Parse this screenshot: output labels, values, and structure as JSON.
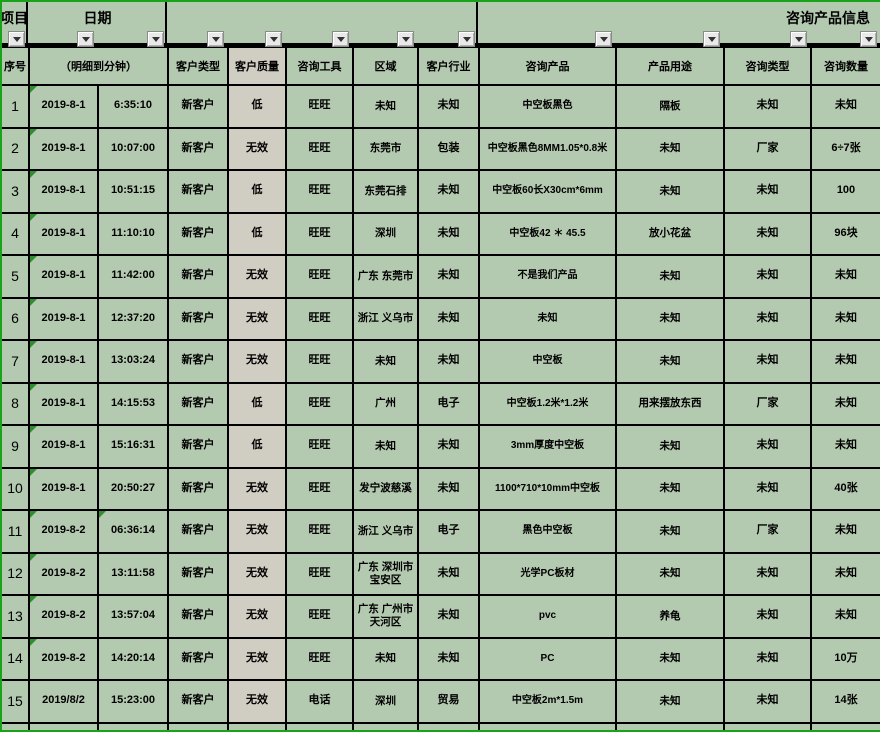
{
  "sheet": {
    "band": {
      "project": "项目",
      "date": "日期",
      "product_info": "咨询产品信息"
    },
    "header": [
      {
        "label": "序号",
        "span": 1
      },
      {
        "label": "（明细到分钟）",
        "span": 2
      },
      {
        "label": "客户类型",
        "span": 1
      },
      {
        "label": "客户质量",
        "span": 1,
        "gray": true
      },
      {
        "label": "咨询工具",
        "span": 1
      },
      {
        "label": "区域",
        "span": 1
      },
      {
        "label": "客户行业",
        "span": 1
      },
      {
        "label": "咨询产品",
        "span": 1
      },
      {
        "label": "产品用途",
        "span": 1
      },
      {
        "label": "咨询类型",
        "span": 1
      },
      {
        "label": "咨询数量",
        "span": 1
      }
    ],
    "rows": [
      {
        "index": "1",
        "date": "2019-8-1",
        "time": "6:35:10",
        "customer_type": "新客户",
        "quality": "低",
        "tool": "旺旺",
        "region": "未知",
        "industry": "未知",
        "product": "中空板黑色",
        "usage": "隔板",
        "type": "未知",
        "quantity": "未知",
        "date_marker": true,
        "time_marker": false
      },
      {
        "index": "2",
        "date": "2019-8-1",
        "time": "10:07:00",
        "customer_type": "新客户",
        "quality": "无效",
        "tool": "旺旺",
        "region": "东莞市",
        "industry": "包装",
        "product": "中空板黑色8MM1.05*0.8米",
        "usage": "未知",
        "type": "厂家",
        "quantity": "6÷7张",
        "date_marker": true,
        "time_marker": false
      },
      {
        "index": "3",
        "date": "2019-8-1",
        "time": "10:51:15",
        "customer_type": "新客户",
        "quality": "低",
        "tool": "旺旺",
        "region": "东莞石排",
        "industry": "未知",
        "product": "中空板60长X30cm*6mm",
        "usage": "未知",
        "type": "未知",
        "quantity": "100",
        "date_marker": true,
        "time_marker": false
      },
      {
        "index": "4",
        "date": "2019-8-1",
        "time": "11:10:10",
        "customer_type": "新客户",
        "quality": "低",
        "tool": "旺旺",
        "region": "深圳",
        "industry": "未知",
        "product": "中空板42 ＊ 45.5",
        "usage": "放小花盆",
        "type": "未知",
        "quantity": "96块",
        "date_marker": true,
        "time_marker": false
      },
      {
        "index": "5",
        "date": "2019-8-1",
        "time": "11:42:00",
        "customer_type": "新客户",
        "quality": "无效",
        "tool": "旺旺",
        "region": "广东 东莞市",
        "industry": "未知",
        "product": "不是我们产品",
        "usage": "未知",
        "type": "未知",
        "quantity": "未知",
        "date_marker": true,
        "time_marker": false
      },
      {
        "index": "6",
        "date": "2019-8-1",
        "time": "12:37:20",
        "customer_type": "新客户",
        "quality": "无效",
        "tool": "旺旺",
        "region": "浙江 义乌市",
        "industry": "未知",
        "product": "未知",
        "usage": "未知",
        "type": "未知",
        "quantity": "未知",
        "date_marker": true,
        "time_marker": false
      },
      {
        "index": "7",
        "date": "2019-8-1",
        "time": "13:03:24",
        "customer_type": "新客户",
        "quality": "无效",
        "tool": "旺旺",
        "region": "未知",
        "industry": "未知",
        "product": "中空板",
        "usage": "未知",
        "type": "未知",
        "quantity": "未知",
        "date_marker": true,
        "time_marker": false
      },
      {
        "index": "8",
        "date": "2019-8-1",
        "time": "14:15:53",
        "customer_type": "新客户",
        "quality": "低",
        "tool": "旺旺",
        "region": "广州",
        "industry": "电子",
        "product": "中空板1.2米*1.2米",
        "usage": "用来摆放东西",
        "type": "厂家",
        "quantity": "未知",
        "date_marker": true,
        "time_marker": false
      },
      {
        "index": "9",
        "date": "2019-8-1",
        "time": "15:16:31",
        "customer_type": "新客户",
        "quality": "低",
        "tool": "旺旺",
        "region": "未知",
        "industry": "未知",
        "product": "3mm厚度中空板",
        "usage": "未知",
        "type": "未知",
        "quantity": "未知",
        "date_marker": true,
        "time_marker": false
      },
      {
        "index": "10",
        "date": "2019-8-1",
        "time": "20:50:27",
        "customer_type": "新客户",
        "quality": "无效",
        "tool": "旺旺",
        "region": "发宁波慈溪",
        "industry": "未知",
        "product": "1100*710*10mm中空板",
        "usage": "未知",
        "type": "未知",
        "quantity": "40张",
        "date_marker": true,
        "time_marker": false
      },
      {
        "index": "11",
        "date": "2019-8-2",
        "time": "06:36:14",
        "customer_type": "新客户",
        "quality": "无效",
        "tool": "旺旺",
        "region": "浙江 义乌市",
        "industry": "电子",
        "product": "黑色中空板",
        "usage": "未知",
        "type": "厂家",
        "quantity": "未知",
        "date_marker": true,
        "time_marker": true
      },
      {
        "index": "12",
        "date": "2019-8-2",
        "time": "13:11:58",
        "customer_type": "新客户",
        "quality": "无效",
        "tool": "旺旺",
        "region": "广东 深圳市宝安区",
        "industry": "未知",
        "product": "光学PC板材",
        "usage": "未知",
        "type": "未知",
        "quantity": "未知",
        "date_marker": true,
        "time_marker": false
      },
      {
        "index": "13",
        "date": "2019-8-2",
        "time": "13:57:04",
        "customer_type": "新客户",
        "quality": "无效",
        "tool": "旺旺",
        "region": "广东 广州市天河区",
        "industry": "未知",
        "product": "pvc",
        "usage": "养龟",
        "type": "未知",
        "quantity": "未知",
        "date_marker": true,
        "time_marker": false
      },
      {
        "index": "14",
        "date": "2019-8-2",
        "time": "14:20:14",
        "customer_type": "新客户",
        "quality": "无效",
        "tool": "旺旺",
        "region": "未知",
        "industry": "未知",
        "product": "PC",
        "usage": "未知",
        "type": "未知",
        "quantity": "10万",
        "date_marker": true,
        "time_marker": false
      },
      {
        "index": "15",
        "date": "2019/8/2",
        "time": "15:23:00",
        "customer_type": "新客户",
        "quality": "无效",
        "tool": "电话",
        "region": "深圳",
        "industry": "贸易",
        "product": "中空板2m*1.5m",
        "usage": "未知",
        "type": "未知",
        "quantity": "14张",
        "date_marker": false,
        "time_marker": false
      }
    ],
    "colors": {
      "cell_green": "#b4cab0",
      "cell_gray": "#d0cdc2",
      "edge_green": "#19a319",
      "marker_green": "#2f8f2f"
    }
  }
}
